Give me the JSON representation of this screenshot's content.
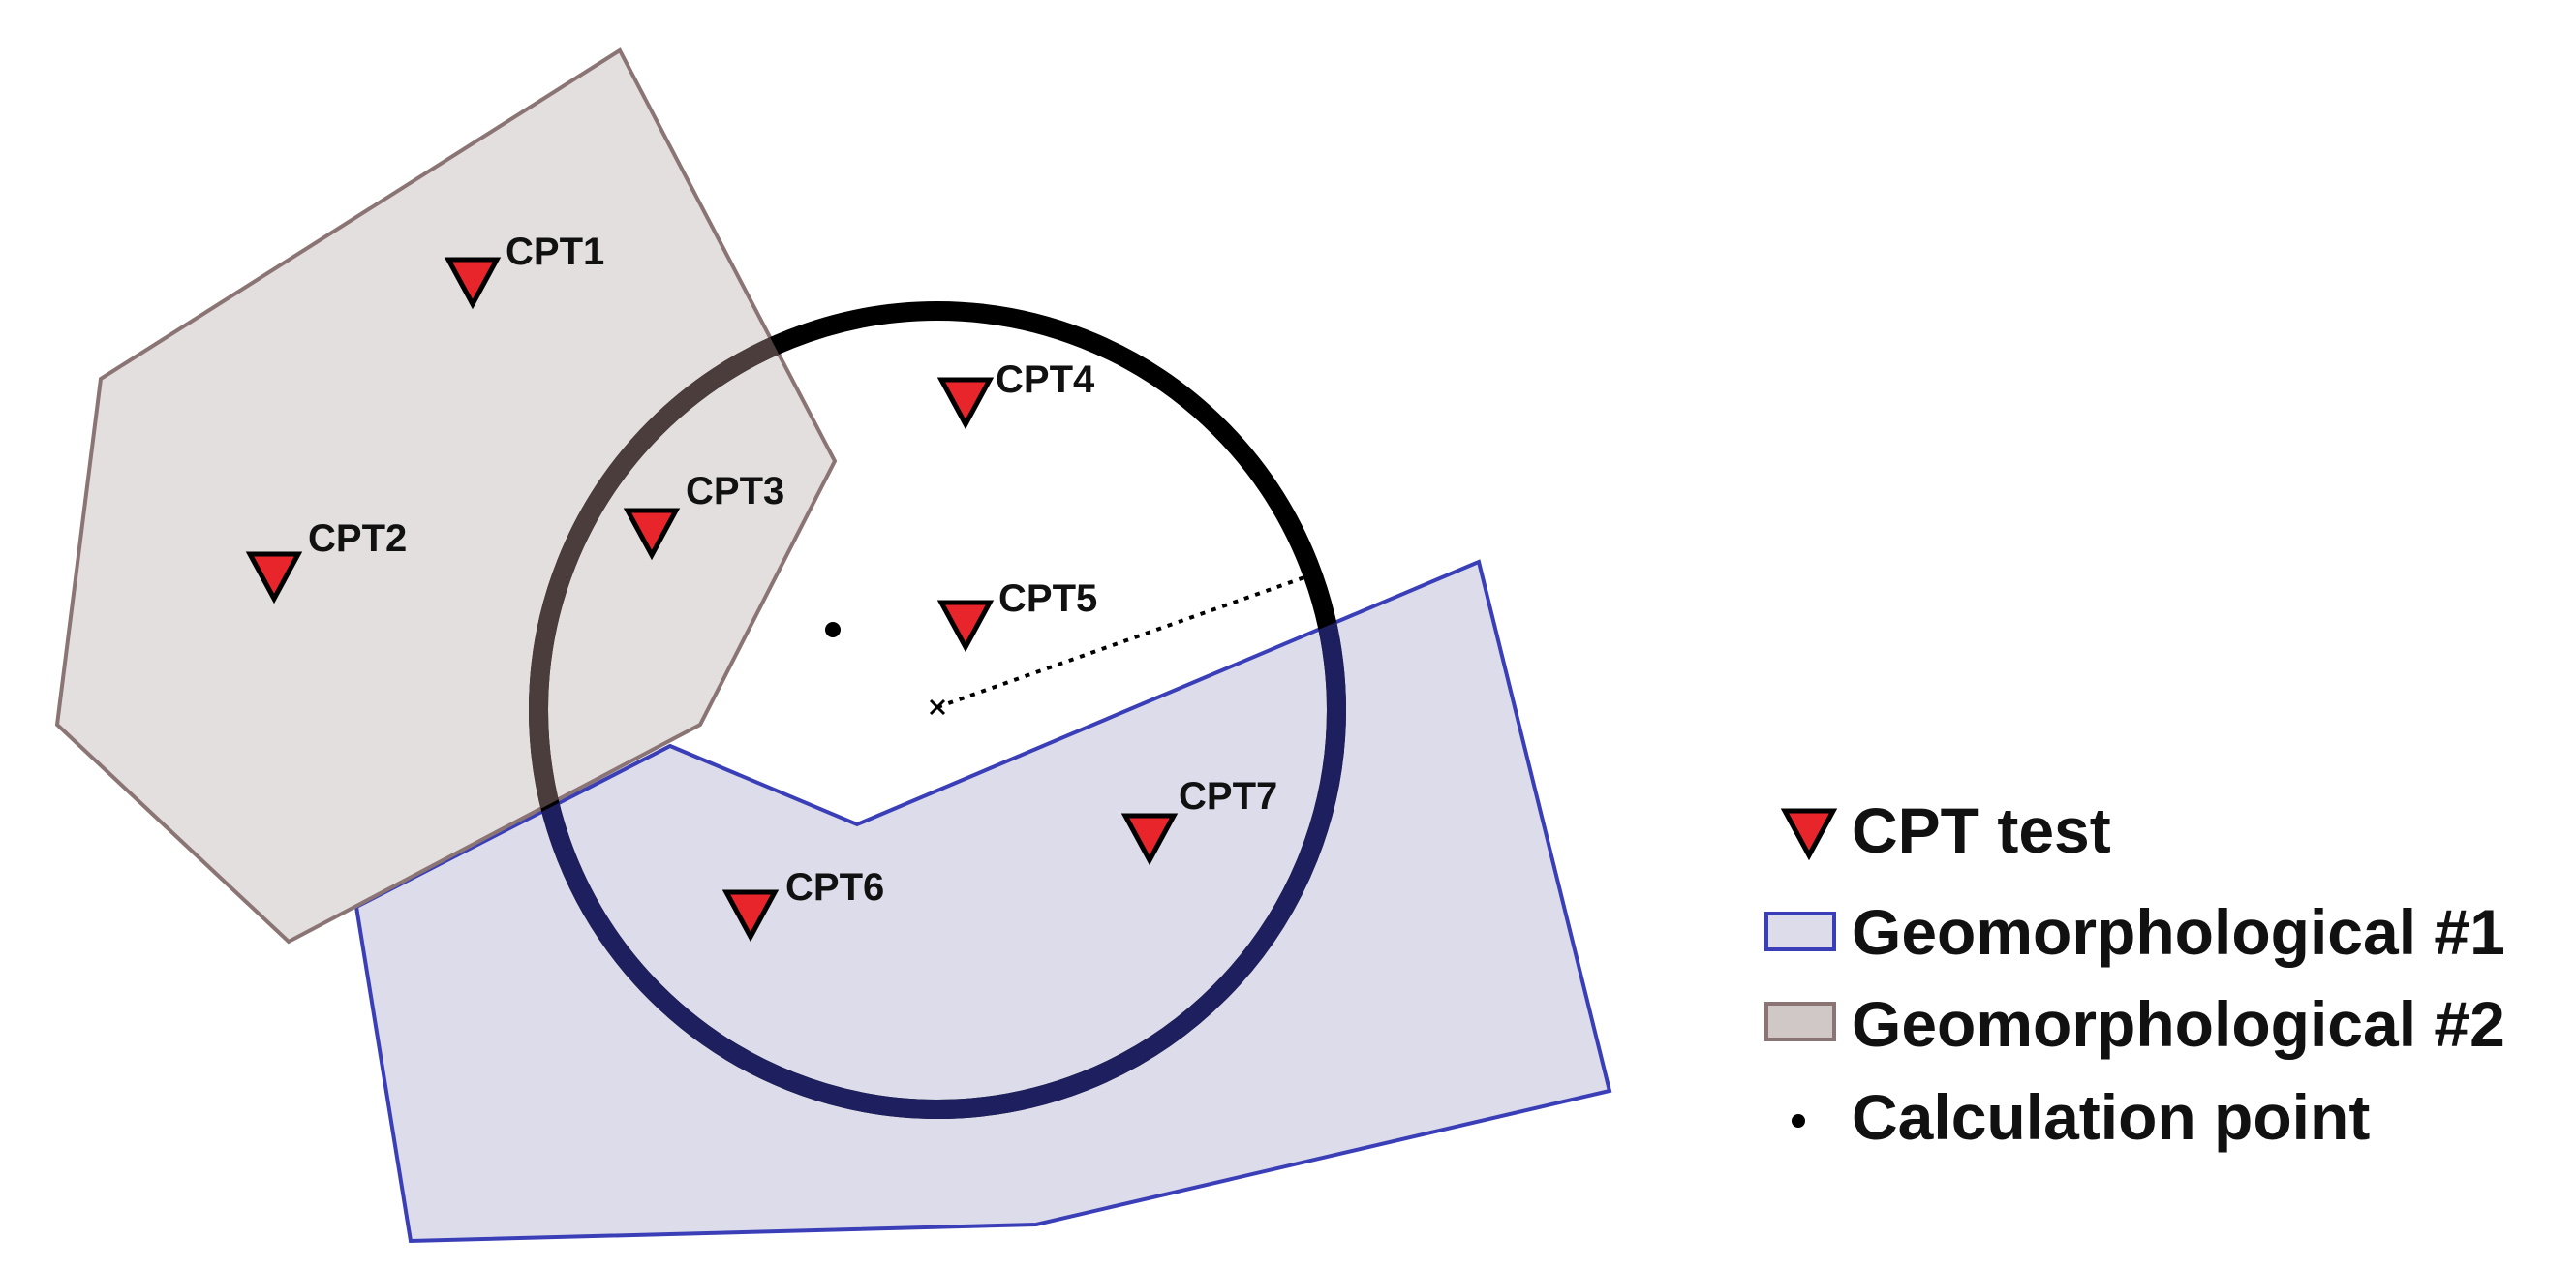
{
  "cpts": [
    {
      "label": "CPT1"
    },
    {
      "label": "CPT2"
    },
    {
      "label": "CPT3"
    },
    {
      "label": "CPT4"
    },
    {
      "label": "CPT5"
    },
    {
      "label": "CPT6"
    },
    {
      "label": "CPT7"
    }
  ],
  "legend": {
    "cpt": "CPT test",
    "geo1": "Geomorphological #1",
    "geo2": "Geomorphological #2",
    "calc": "Calculation point"
  },
  "colors": {
    "cpt_fill": "#e8252a",
    "geo1_fill": "#dcdcea",
    "geo1_stroke": "#3a3fb8",
    "geo2_fill": "#e3dfde",
    "geo2_stroke": "#8a7474",
    "circle_outside": "#000000",
    "circle_in_geo1": "#1e1f5e",
    "circle_in_geo2": "#4a3d3b"
  },
  "icons": {
    "cpt": "inverted-triangle-marker",
    "calc": "dot-marker",
    "center": "x-marker"
  }
}
